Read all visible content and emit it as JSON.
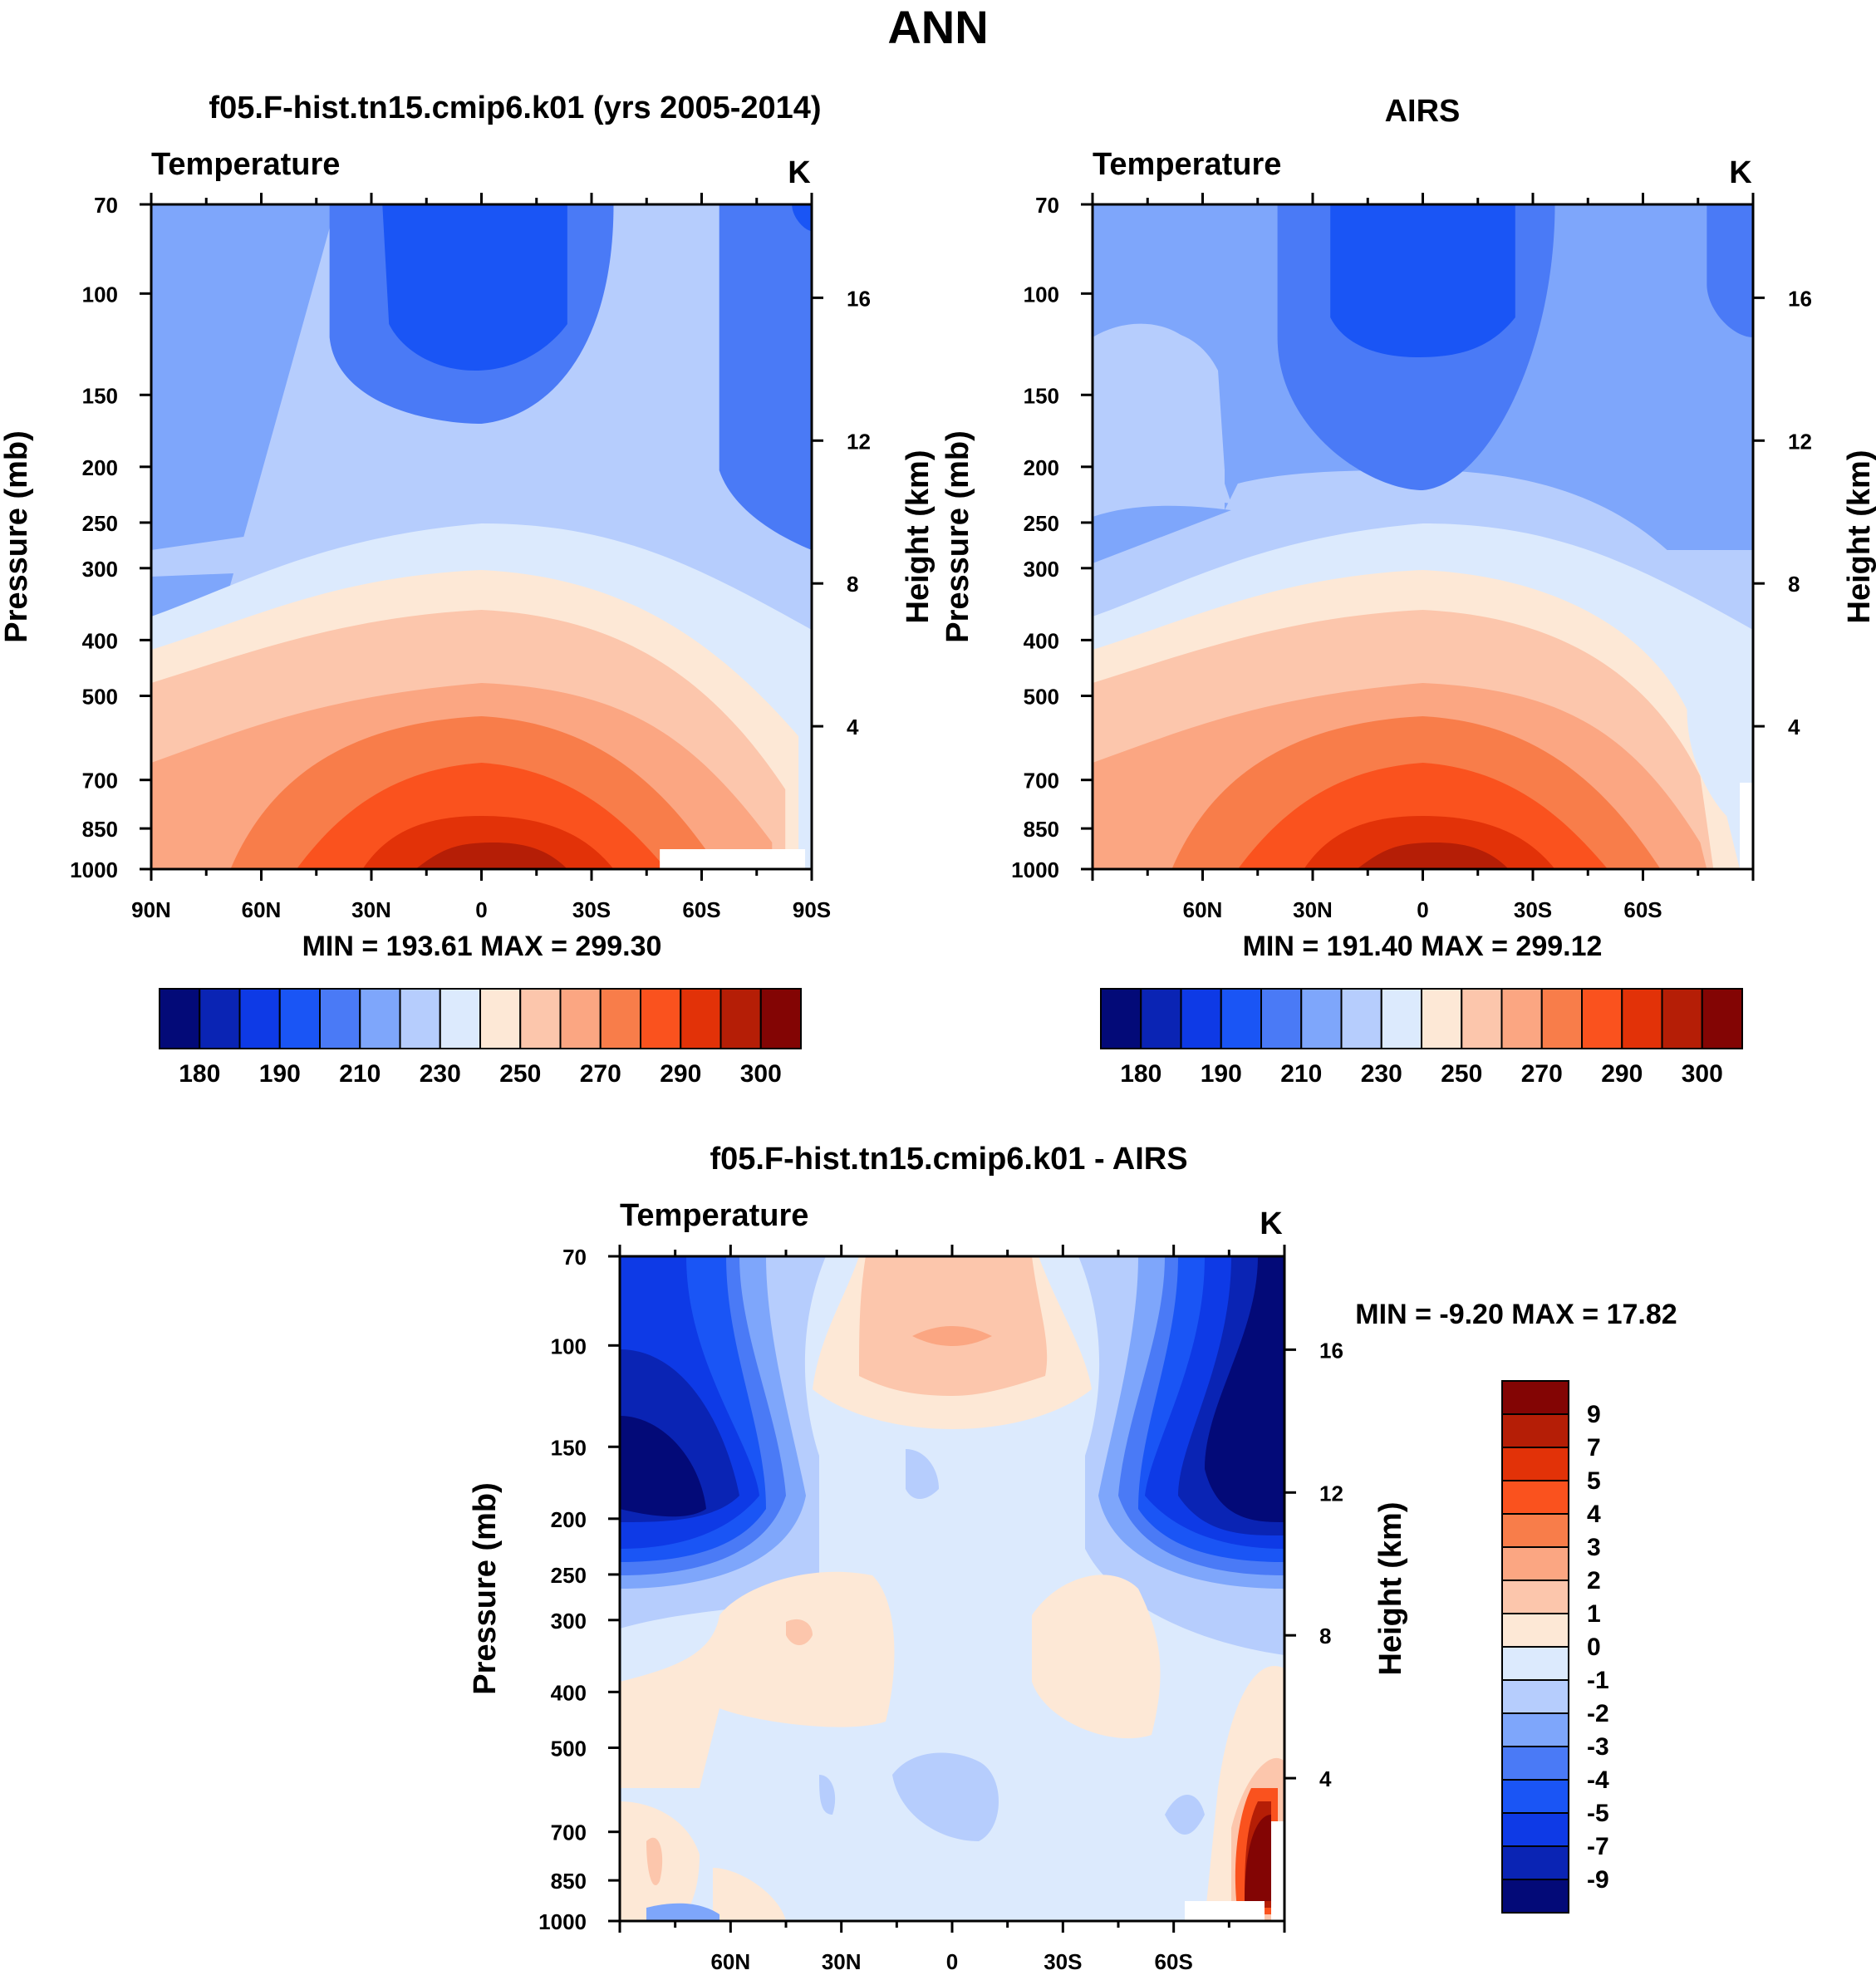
{
  "figure_title": "ANN",
  "colors": {
    "abs_palette": [
      "#030a78",
      "#0a24b4",
      "#0e3ae6",
      "#1a55f5",
      "#4a7af6",
      "#7ea6fb",
      "#b6cdfd",
      "#dceafd",
      "#fde8d6",
      "#fcc6ac",
      "#fba682",
      "#f87d4a",
      "#fa521e",
      "#e23208",
      "#b51e06",
      "#830504"
    ],
    "diff_palette": [
      "#030a78",
      "#0a24b4",
      "#0e3ae6",
      "#1a55f5",
      "#4a7af6",
      "#7ea6fb",
      "#b6cdfd",
      "#dceafd",
      "#fde8d6",
      "#fcc6ac",
      "#fba682",
      "#f87d4a",
      "#fa521e",
      "#e23208",
      "#b51e06",
      "#830504"
    ]
  },
  "chart_data": [
    {
      "type": "heatmap",
      "panel": "model",
      "title": "f05.F-hist.tn15.cmip6.k01 (yrs 2005-2014)",
      "variable_label": "Temperature",
      "units": "K",
      "ylabel": "Pressure (mb)",
      "ylabel_right": "Height (km)",
      "x_ticks": [
        "90N",
        "60N",
        "30N",
        "0",
        "30S",
        "60S",
        "90S"
      ],
      "x_range": [
        90,
        -90
      ],
      "y_ticks": [
        70,
        100,
        150,
        200,
        250,
        300,
        400,
        500,
        700,
        850,
        1000
      ],
      "y_range": [
        70,
        1000
      ],
      "y_scale": "log",
      "height_ticks": [
        4,
        8,
        12,
        16
      ],
      "stats_text": "MIN = 193.61   MAX = 299.30",
      "stats": {
        "min": 193.61,
        "max": 299.3
      },
      "colorbar_ticks": [
        "180",
        "190",
        "210",
        "230",
        "250",
        "270",
        "290",
        "300"
      ]
    },
    {
      "type": "heatmap",
      "panel": "obs",
      "title": "AIRS",
      "variable_label": "Temperature",
      "units": "K",
      "ylabel": "Pressure (mb)",
      "ylabel_right": "Height (km)",
      "x_ticks": [
        "60N",
        "30N",
        "0",
        "30S",
        "60S"
      ],
      "x_range": [
        90,
        -90
      ],
      "y_ticks": [
        70,
        100,
        150,
        200,
        250,
        300,
        400,
        500,
        700,
        850,
        1000
      ],
      "y_range": [
        70,
        1000
      ],
      "y_scale": "log",
      "height_ticks": [
        4,
        8,
        12,
        16
      ],
      "stats_text": "MIN = 191.40   MAX = 299.12",
      "stats": {
        "min": 191.4,
        "max": 299.12
      },
      "colorbar_ticks": [
        "180",
        "190",
        "210",
        "230",
        "250",
        "270",
        "290",
        "300"
      ]
    },
    {
      "type": "heatmap",
      "panel": "diff",
      "title": "f05.F-hist.tn15.cmip6.k01 - AIRS",
      "variable_label": "Temperature",
      "units": "K",
      "ylabel": "Pressure (mb)",
      "ylabel_right": "Height (km)",
      "x_ticks": [
        "60N",
        "30N",
        "0",
        "30S",
        "60S"
      ],
      "x_range": [
        90,
        -90
      ],
      "y_ticks": [
        70,
        100,
        150,
        200,
        250,
        300,
        400,
        500,
        700,
        850,
        1000
      ],
      "y_range": [
        70,
        1000
      ],
      "y_scale": "log",
      "height_ticks": [
        4,
        8,
        12,
        16
      ],
      "stats_text": "MIN =  -9.20   MAX =  17.82",
      "stats": {
        "min": -9.2,
        "max": 17.82
      },
      "colorbar_ticks": [
        "9",
        "7",
        "5",
        "4",
        "3",
        "2",
        "1",
        "0",
        "-1",
        "-2",
        "-3",
        "-4",
        "-5",
        "-7",
        "-9"
      ]
    }
  ]
}
